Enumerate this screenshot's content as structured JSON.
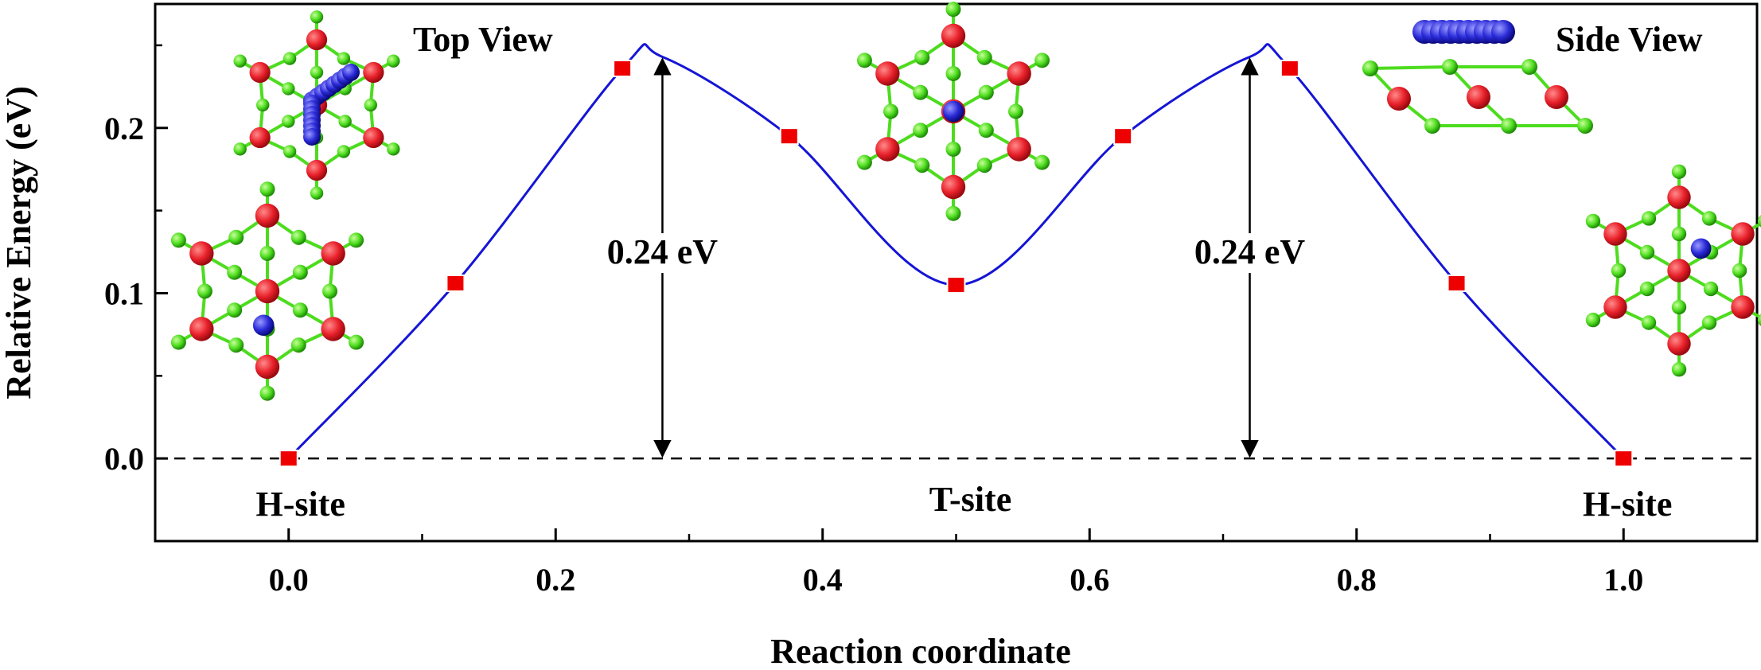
{
  "chart_data": {
    "type": "line",
    "xlabel": "Reaction coordinate",
    "ylabel": "Relative Energy (eV)",
    "xlim": [
      -0.1,
      1.1
    ],
    "ylim": [
      -0.05,
      0.275
    ],
    "x_ticks": [
      "0.0",
      "0.2",
      "0.4",
      "0.6",
      "0.8",
      "1.0"
    ],
    "y_ticks": [
      "0.0",
      "0.1",
      "0.2"
    ],
    "series": [
      {
        "style": "markers",
        "marker": "square",
        "color": "#ee0000",
        "x": [
          0.0,
          0.125,
          0.25,
          0.375,
          0.5,
          0.625,
          0.75,
          0.875,
          1.0
        ],
        "y": [
          0.0,
          0.106,
          0.236,
          0.195,
          0.105,
          0.195,
          0.236,
          0.106,
          0.0
        ]
      },
      {
        "style": "smooth-line",
        "color": "#1515d6",
        "x": [
          0.0,
          0.125,
          0.25,
          0.28,
          0.375,
          0.5,
          0.625,
          0.72,
          0.75,
          0.875,
          1.0
        ],
        "y": [
          0.0,
          0.106,
          0.236,
          0.243,
          0.195,
          0.105,
          0.195,
          0.243,
          0.236,
          0.106,
          0.0
        ]
      }
    ],
    "reference_line": {
      "y": 0.0,
      "style": "dashed",
      "color": "#000000"
    },
    "annotations": [
      {
        "text": "0.24 eV",
        "kind": "double-arrow",
        "x": 0.28,
        "y_from": 0.0,
        "y_to": 0.243
      },
      {
        "text": "0.24 eV",
        "kind": "double-arrow",
        "x": 0.72,
        "y_from": 0.0,
        "y_to": 0.243
      }
    ],
    "site_labels": [
      {
        "text": "H-site",
        "x": 0.0
      },
      {
        "text": "T-site",
        "x": 0.5
      },
      {
        "text": "H-site",
        "x": 1.0
      }
    ],
    "inset_labels": [
      "Top View",
      "Side View"
    ],
    "inset_colors": {
      "red_atom": "#e8202a",
      "green_atom": "#4ddc1e",
      "blue_atom": "#2a2ad8"
    },
    "grid": false,
    "legend": "none"
  }
}
